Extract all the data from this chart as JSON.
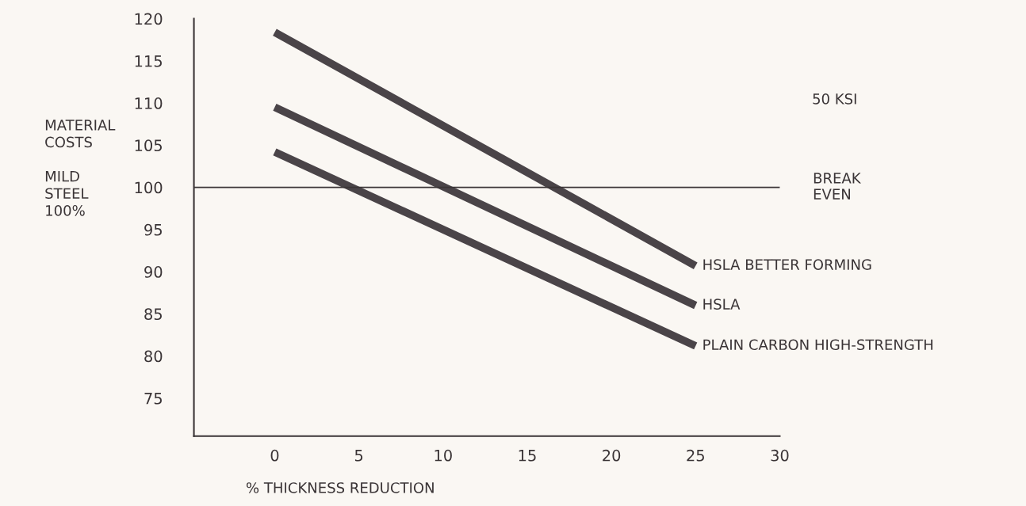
{
  "chart_data": {
    "type": "line",
    "xlabel": "% THICKNESS REDUCTION",
    "ylabel": "MATERIAL\nCOSTS\n\nMILD\nSTEEL\n100%",
    "x": [
      0,
      25
    ],
    "series": [
      {
        "name": "HSLA BETTER FORMING",
        "color": "#4a4448",
        "values": [
          118.4,
          90.7
        ]
      },
      {
        "name": "HSLA",
        "color": "#4a4448",
        "values": [
          109.5,
          86
        ]
      },
      {
        "name": "PLAIN CARBON HIGH-STRENGTH",
        "color": "#4a4448",
        "values": [
          104.2,
          81.2
        ]
      }
    ],
    "xlim": [
      -4.8,
      30
    ],
    "xticks": [
      0,
      5,
      10,
      15,
      20,
      25,
      30
    ],
    "ylim": [
      70.5,
      120
    ],
    "yticks": [
      75,
      80,
      85,
      90,
      95,
      100,
      105,
      110,
      115,
      120
    ],
    "ref_lines": [
      {
        "axis": "y",
        "value": 100,
        "label": "BREAK\nEVEN",
        "color": "#3a3436"
      }
    ],
    "annotations": [
      "50 KSI"
    ],
    "grid": false,
    "legend": false,
    "marker": "none",
    "line_style": "solid"
  }
}
